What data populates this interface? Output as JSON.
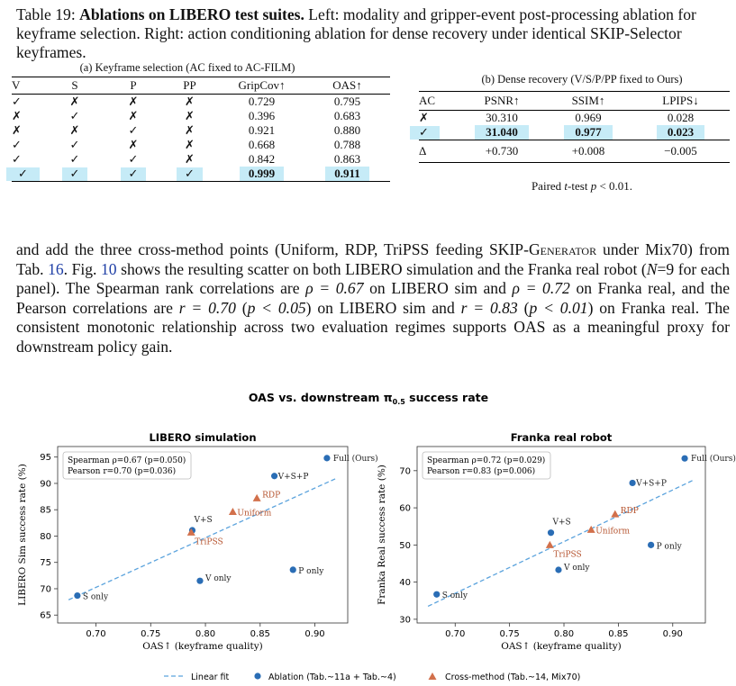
{
  "caption": {
    "prefix": "Table 19: ",
    "bold": "Ablations on LIBERO test suites.",
    "rest": " Left: modality and gripper-event post-processing ablation for keyframe selection. Right: action conditioning ablation for dense recovery under identical SKIP-Selector keyframes."
  },
  "table_a": {
    "caption": "(a) Keyframe selection (AC fixed to AC-FILM)",
    "headers": [
      "V",
      "S",
      "P",
      "PP",
      "GripCov↑",
      "OAS↑"
    ],
    "rows": [
      [
        "✓",
        "✗",
        "✗",
        "✗",
        "0.729",
        "0.795"
      ],
      [
        "✗",
        "✓",
        "✗",
        "✗",
        "0.396",
        "0.683"
      ],
      [
        "✗",
        "✗",
        "✓",
        "✗",
        "0.921",
        "0.880"
      ],
      [
        "✓",
        "✓",
        "✗",
        "✗",
        "0.668",
        "0.788"
      ],
      [
        "✓",
        "✓",
        "✓",
        "✗",
        "0.842",
        "0.863"
      ],
      [
        "✓",
        "✓",
        "✓",
        "✓",
        "0.999",
        "0.911"
      ]
    ]
  },
  "table_b": {
    "caption": "(b) Dense recovery (V/S/P/PP fixed to Ours)",
    "headers": [
      "AC",
      "PSNR↑",
      "SSIM↑",
      "LPIPS↓"
    ],
    "rows": [
      [
        "✗",
        "30.310",
        "0.969",
        "0.028"
      ],
      [
        "✓",
        "31.040",
        "0.977",
        "0.023"
      ]
    ],
    "delta": [
      "Δ",
      "+0.730",
      "+0.008",
      "−0.005"
    ],
    "note_prefix": "Paired ",
    "note_t": "t",
    "note_mid": "-test ",
    "note_p": "p",
    "note_rest": " < 0.01."
  },
  "paragraph": {
    "s1": "and add the three cross-method points (Uniform, RDP, TriPSS feeding ",
    "skip_gen": "SKIP-Generator",
    "s2": " under Mix70) from Tab. ",
    "ref_tab": "16",
    "s3": ". Fig. ",
    "ref_fig": "10",
    "s4": " shows the resulting scatter on both LIBERO simulation and the Franka real robot (",
    "s4n": "N",
    "s4b": "=9 for each panel). The Spearman rank correlations are ",
    "rho1": "ρ = 0.67",
    "s5": " on LIBERO sim and ",
    "rho2": "ρ = 0.72",
    "s6": " on Franka real, and the Pearson correlations are ",
    "r1": "r = 0.70",
    "s7": " (",
    "p1": "p < 0.05",
    "s8": ") on LIBERO sim and ",
    "r2": "r = 0.83",
    "s9": " (",
    "p2": "p < 0.01",
    "s10": ") on Franka real. The consistent monotonic relationship across two evaluation regimes supports OAS as a meaningful proxy for downstream policy gain."
  },
  "figure": {
    "suptitle": "OAS vs. downstream π",
    "suptitle_sub": "0.5",
    "suptitle_end": " success rate",
    "legend": {
      "fit": "Linear fit",
      "ablation": "Ablation (Tab.~11a + Tab.~4)",
      "cross": "Cross-method (Tab.~14, Mix70)"
    },
    "colors": {
      "ablation": "#2a6db5",
      "cross": "#d2704b",
      "fit": "#5ba3dd"
    }
  },
  "chart_data": [
    {
      "type": "scatter",
      "title": "LIBERO simulation",
      "xlabel": "OAS↑ (keyframe quality)",
      "ylabel": "LIBERO Sim success rate (%)",
      "xlim": [
        0.665,
        0.93
      ],
      "ylim": [
        63.5,
        97
      ],
      "xticks": [
        "0.70",
        "0.75",
        "0.80",
        "0.85",
        "0.90"
      ],
      "xtick_values": [
        0.7,
        0.75,
        0.8,
        0.85,
        0.9
      ],
      "yticks": [
        "65",
        "70",
        "75",
        "80",
        "85",
        "90",
        "95"
      ],
      "ytick_values": [
        65,
        70,
        75,
        80,
        85,
        90,
        95
      ],
      "stats_line1": "Spearman ρ=0.67 (p=0.050)",
      "stats_line2": "Pearson r=0.70 (p=0.036)",
      "fit": {
        "x": [
          0.675,
          0.92
        ],
        "y": [
          67.9,
          91.0
        ]
      },
      "series": [
        {
          "name": "Ablation (Tab.~11a + Tab.~4)",
          "marker": "circle",
          "points": [
            {
              "x": 0.683,
              "y": 68.7,
              "label": "S only"
            },
            {
              "x": 0.795,
              "y": 71.5,
              "label": "V only"
            },
            {
              "x": 0.88,
              "y": 73.6,
              "label": "P only"
            },
            {
              "x": 0.788,
              "y": 81.1,
              "label": "V+S"
            },
            {
              "x": 0.863,
              "y": 91.4,
              "label": "V+S+P"
            },
            {
              "x": 0.911,
              "y": 94.8,
              "label": "Full (Ours)"
            }
          ]
        },
        {
          "name": "Cross-method (Tab.~14, Mix70)",
          "marker": "triangle",
          "points": [
            {
              "x": 0.787,
              "y": 80.7,
              "label": "TriPSS"
            },
            {
              "x": 0.825,
              "y": 84.6,
              "label": "Uniform"
            },
            {
              "x": 0.847,
              "y": 87.2,
              "label": "RDP"
            }
          ]
        }
      ]
    },
    {
      "type": "scatter",
      "title": "Franka real robot",
      "xlabel": "OAS↑ (keyframe quality)",
      "ylabel": "Franka Real success rate (%)",
      "xlim": [
        0.665,
        0.93
      ],
      "ylim": [
        29,
        76.5
      ],
      "xticks": [
        "0.70",
        "0.75",
        "0.80",
        "0.85",
        "0.90"
      ],
      "xtick_values": [
        0.7,
        0.75,
        0.8,
        0.85,
        0.9
      ],
      "yticks": [
        "30",
        "40",
        "50",
        "60",
        "70"
      ],
      "ytick_values": [
        30,
        40,
        50,
        60,
        70
      ],
      "stats_line1": "Spearman ρ=0.72 (p=0.029)",
      "stats_line2": "Pearson r=0.83 (p=0.006)",
      "fit": {
        "x": [
          0.675,
          0.92
        ],
        "y": [
          33.5,
          67.6
        ]
      },
      "series": [
        {
          "name": "Ablation (Tab.~11a + Tab.~4)",
          "marker": "circle",
          "points": [
            {
              "x": 0.683,
              "y": 36.7,
              "label": "S only"
            },
            {
              "x": 0.795,
              "y": 43.3,
              "label": "V only"
            },
            {
              "x": 0.88,
              "y": 50.0,
              "label": "P only"
            },
            {
              "x": 0.788,
              "y": 53.3,
              "label": "V+S"
            },
            {
              "x": 0.863,
              "y": 66.7,
              "label": "V+S+P"
            },
            {
              "x": 0.911,
              "y": 73.3,
              "label": "Full (Ours)"
            }
          ]
        },
        {
          "name": "Cross-method (Tab.~14, Mix70)",
          "marker": "triangle",
          "points": [
            {
              "x": 0.787,
              "y": 50.0,
              "label": "TriPSS"
            },
            {
              "x": 0.825,
              "y": 54.1,
              "label": "Uniform"
            },
            {
              "x": 0.847,
              "y": 58.3,
              "label": "RDP"
            }
          ]
        }
      ]
    }
  ]
}
